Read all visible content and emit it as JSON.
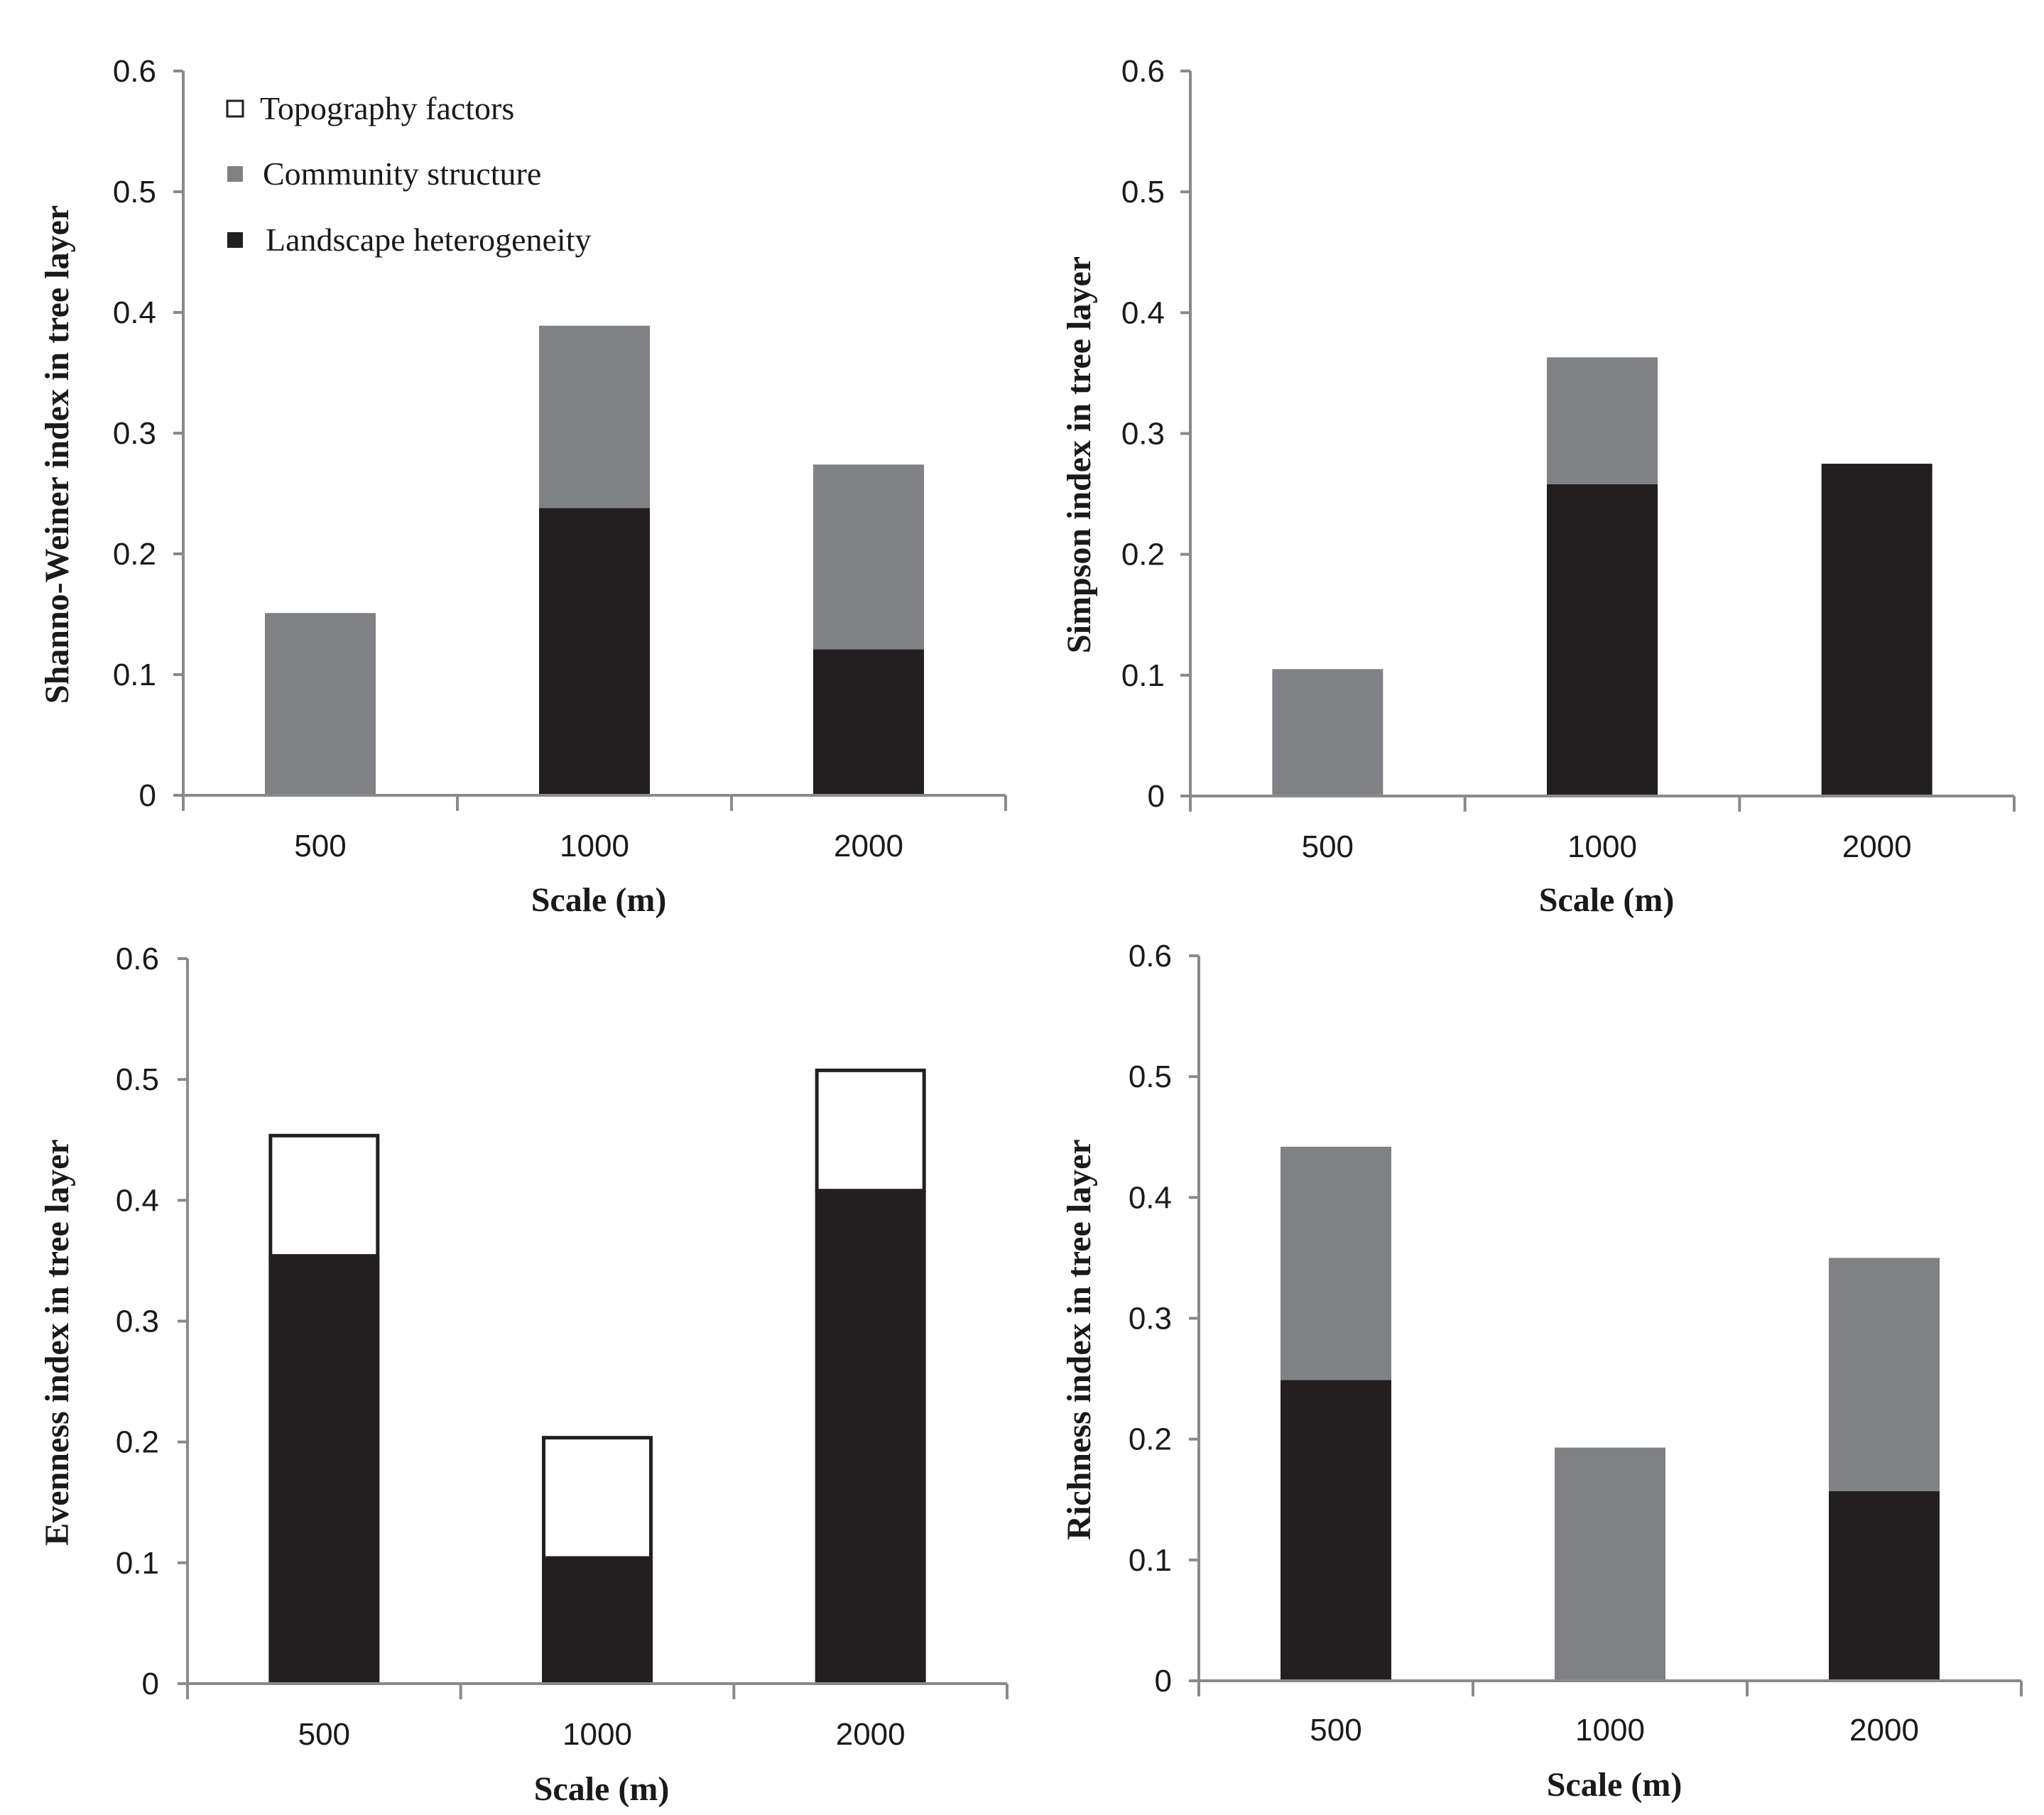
{
  "colors": {
    "landscape": "#231f20",
    "community": "#808184",
    "topography": "#ffffff",
    "outline": "#231f20",
    "axis": "#8a8a8a"
  },
  "legend": [
    {
      "key": "topography",
      "label": "Topography factors"
    },
    {
      "key": "community",
      "label": "Community structure"
    },
    {
      "key": "landscape",
      "label": "Landscape heterogeneity"
    }
  ],
  "chart_data": [
    {
      "type": "bar",
      "stacked": true,
      "ylabel": "Shanno-Weiner index in tree layer",
      "xlabel": "Scale (m)",
      "ylim": [
        0,
        0.6
      ],
      "yticks": [
        "0",
        "0.1",
        "0.2",
        "0.3",
        "0.4",
        "0.5",
        "0.6"
      ],
      "categories": [
        "500",
        "1000",
        "2000"
      ],
      "series": [
        {
          "name": "Landscape heterogeneity",
          "key": "landscape",
          "values": [
            0,
            0.238,
            0.121
          ]
        },
        {
          "name": "Community structure",
          "key": "community",
          "values": [
            0.151,
            0.151,
            0.153
          ]
        },
        {
          "name": "Topography factors",
          "key": "topography",
          "values": [
            0,
            0,
            0
          ]
        }
      ],
      "show_legend": true
    },
    {
      "type": "bar",
      "stacked": true,
      "ylabel": "Simpson index in tree layer",
      "xlabel": "Scale (m)",
      "ylim": [
        0,
        0.6
      ],
      "yticks": [
        "0",
        "0.1",
        "0.2",
        "0.3",
        "0.4",
        "0.5",
        "0.6"
      ],
      "categories": [
        "500",
        "1000",
        "2000"
      ],
      "series": [
        {
          "name": "Landscape heterogeneity",
          "key": "landscape",
          "values": [
            0,
            0.258,
            0.275
          ]
        },
        {
          "name": "Community structure",
          "key": "community",
          "values": [
            0.105,
            0.105,
            0
          ]
        },
        {
          "name": "Topography factors",
          "key": "topography",
          "values": [
            0,
            0,
            0
          ]
        }
      ],
      "show_legend": false
    },
    {
      "type": "bar",
      "stacked": true,
      "ylabel": "Evenness index in tree layer",
      "xlabel": "Scale (m)",
      "ylim": [
        0,
        0.6
      ],
      "yticks": [
        "0",
        "0.1",
        "0.2",
        "0.3",
        "0.4",
        "0.5",
        "0.6"
      ],
      "categories": [
        "500",
        "1000",
        "2000"
      ],
      "series": [
        {
          "name": "Landscape heterogeneity",
          "key": "landscape",
          "values": [
            0.354,
            0.104,
            0.408
          ]
        },
        {
          "name": "Community structure",
          "key": "community",
          "values": [
            0,
            0,
            0
          ]
        },
        {
          "name": "Topography factors",
          "key": "topography",
          "values": [
            0.101,
            0.101,
            0.101
          ]
        }
      ],
      "show_legend": false
    },
    {
      "type": "bar",
      "stacked": true,
      "ylabel": "Richness index in tree layer",
      "xlabel": "Scale (m)",
      "ylim": [
        0,
        0.6
      ],
      "yticks": [
        "0",
        "0.1",
        "0.2",
        "0.3",
        "0.4",
        "0.5",
        "0.6"
      ],
      "categories": [
        "500",
        "1000",
        "2000"
      ],
      "series": [
        {
          "name": "Landscape heterogeneity",
          "key": "landscape",
          "values": [
            0.249,
            0,
            0.157
          ]
        },
        {
          "name": "Community structure",
          "key": "community",
          "values": [
            0.193,
            0.193,
            0.193
          ]
        },
        {
          "name": "Topography factors",
          "key": "topography",
          "values": [
            0,
            0,
            0
          ]
        }
      ],
      "show_legend": false
    }
  ]
}
